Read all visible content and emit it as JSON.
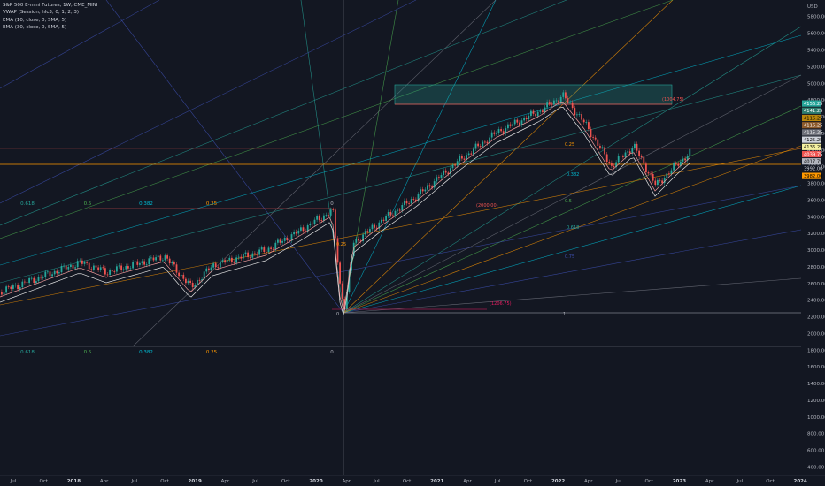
{
  "header": {
    "symbol_line": "S&P 500 E-mini Futures, 1W, CME_MINI",
    "indicators": [
      "VWAP (Session, hlc3, 0, 1, 2, 3)",
      "EMA (10, close, 0, SMA, 5)",
      "EMA (30, close, 0, SMA, 5)"
    ]
  },
  "chart_data": {
    "type": "candlestick",
    "currency": "USD",
    "price_axis_ticks": [
      5800,
      5600,
      5400,
      5200,
      5000,
      4800,
      4600,
      4400,
      4200,
      4000,
      3800,
      3600,
      3400,
      3200,
      3000,
      2800,
      2600,
      2400,
      2200,
      2000,
      1800,
      1600,
      1400,
      1200,
      1000,
      800,
      600,
      400
    ],
    "time_axis_labels": [
      {
        "label": "Jul",
        "year": false
      },
      {
        "label": "Oct",
        "year": false
      },
      {
        "label": "2018",
        "year": true
      },
      {
        "label": "Apr",
        "year": false
      },
      {
        "label": "Jul",
        "year": false
      },
      {
        "label": "Oct",
        "year": false
      },
      {
        "label": "2019",
        "year": true
      },
      {
        "label": "Apr",
        "year": false
      },
      {
        "label": "Jul",
        "year": false
      },
      {
        "label": "Oct",
        "year": false
      },
      {
        "label": "2020",
        "year": true
      },
      {
        "label": "Apr",
        "year": false
      },
      {
        "label": "Jul",
        "year": false
      },
      {
        "label": "Oct",
        "year": false
      },
      {
        "label": "2021",
        "year": true
      },
      {
        "label": "Apr",
        "year": false
      },
      {
        "label": "Jul",
        "year": false
      },
      {
        "label": "Oct",
        "year": false
      },
      {
        "label": "2022",
        "year": true
      },
      {
        "label": "Apr",
        "year": false
      },
      {
        "label": "Jul",
        "year": false
      },
      {
        "label": "Oct",
        "year": false
      },
      {
        "label": "2023",
        "year": true
      },
      {
        "label": "Apr",
        "year": false
      },
      {
        "label": "Jul",
        "year": false
      },
      {
        "label": "Oct",
        "year": false
      },
      {
        "label": "2024",
        "year": true
      }
    ],
    "price_tags": [
      {
        "text": "4156.25",
        "bg": "#26a69a",
        "fg": "#ffffff"
      },
      {
        "text": "4141.25",
        "bg": "#2e7d6f",
        "fg": "#ffffff"
      },
      {
        "text": "4116.25",
        "bg": "#b8860b",
        "fg": "#000000"
      },
      {
        "text": "4116.25",
        "bg": "#8d5a2b",
        "fg": "#ffffff"
      },
      {
        "text": "4115.25",
        "bg": "#6d6f78",
        "fg": "#ffffff"
      },
      {
        "text": "4125.25",
        "bg": "#d1d4dc",
        "fg": "#000000"
      },
      {
        "text": "4136.25",
        "bg": "#f5f0a0",
        "fg": "#000000"
      },
      {
        "text": "4039.75",
        "bg": "#ef5350",
        "fg": "#ffffff"
      },
      {
        "text": "4017.75",
        "bg": "#b2b5be",
        "fg": "#000000"
      },
      {
        "text": "3992.00",
        "bg": "#131722",
        "fg": "#d1d4dc"
      },
      {
        "text": "3982.00",
        "bg": "#ff9800",
        "fg": "#000000"
      }
    ],
    "fib_labels_upper": [
      "0.618",
      "0.5",
      "0.382",
      "0.25",
      "0"
    ],
    "fib_labels_lower": [
      "0.618",
      "0.5",
      "0.382",
      "0.25",
      "0"
    ],
    "fan_labels": [
      "0.25",
      "0.382",
      "0.5",
      "0.618",
      "0.75",
      "1"
    ],
    "annotations": [
      "0",
      "0.25",
      "(1004.75)",
      "(2000.00)",
      "(1206.75)"
    ],
    "colors": {
      "background": "#131722",
      "up": "#26a69a",
      "down": "#ef5350",
      "vwap": "#e1e1e1"
    }
  }
}
